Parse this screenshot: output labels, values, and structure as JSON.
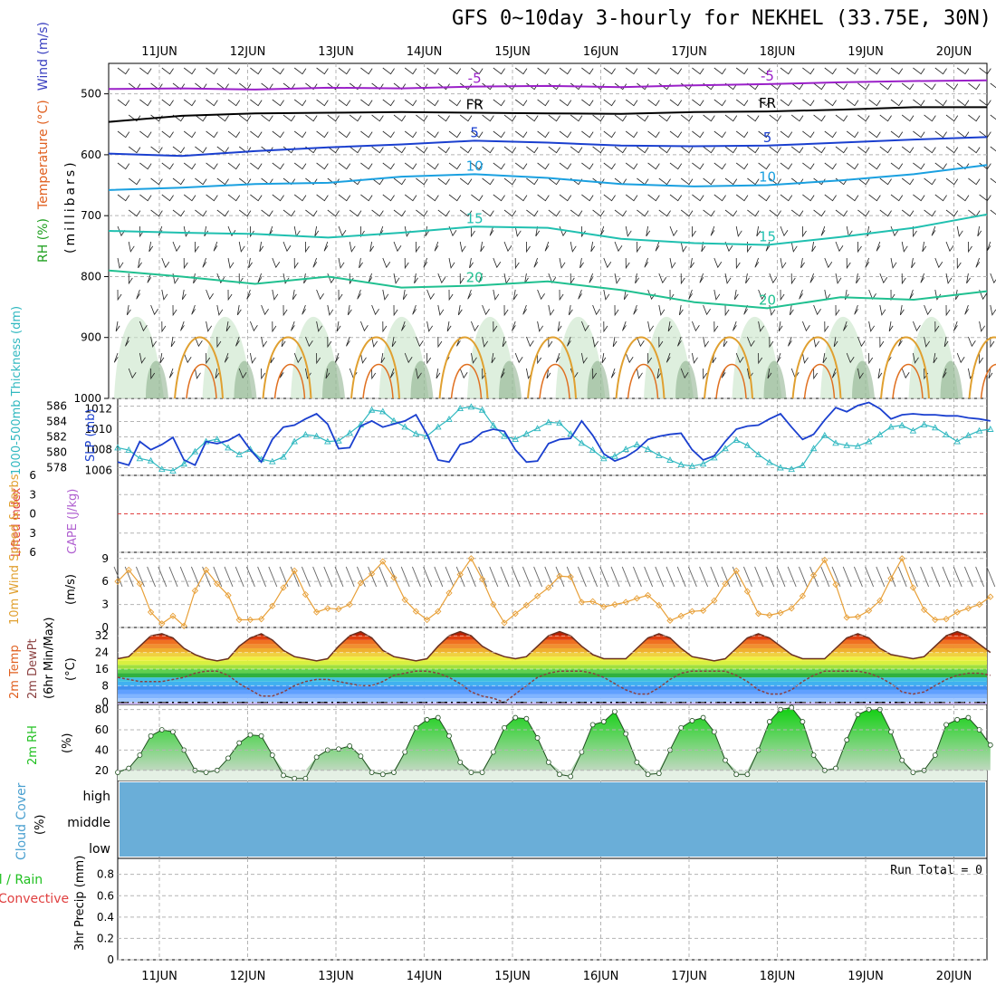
{
  "title": "GFS 0~10day 3-hourly for NEKHEL (33.75E, 30N)",
  "dates": [
    "11JUN",
    "12JUN",
    "13JUN",
    "14JUN",
    "15JUN",
    "16JUN",
    "17JUN",
    "18JUN",
    "19JUN",
    "20JUN"
  ],
  "colors": {
    "grid": "#b4b4b4",
    "slp": "#1a3fcf",
    "thickness": "#30b8c0",
    "wind_speed": "#e8a038",
    "temp_top": "#e03010",
    "rh": "#20c020",
    "cloud": "#6aaed8",
    "lifted_index_zero": "#e04040"
  },
  "chart_data": [
    {
      "type": "contour",
      "panel": "upper-air",
      "ylabel_parts": [
        "Wind (m/s)",
        "Temperature (°C)",
        "RH (%)"
      ],
      "ylabel_units": "(millibars)",
      "y_ticks": [
        500,
        600,
        700,
        800,
        900,
        1000
      ],
      "ylim": [
        1000,
        450
      ],
      "isotherm_labels": [
        "-5",
        "FR",
        "5",
        "10",
        "15",
        "20"
      ],
      "isotherms": [
        {
          "label": "-5",
          "color": "#9a20c8",
          "p": [
            492,
            491,
            493,
            490,
            491,
            488,
            487,
            489,
            486,
            484,
            481,
            479,
            478
          ]
        },
        {
          "label": "FR",
          "color": "#000000",
          "p": [
            546,
            536,
            532,
            531,
            530,
            531,
            532,
            533,
            530,
            529,
            526,
            522,
            522
          ]
        },
        {
          "label": "5",
          "color": "#1a3fcf",
          "p": [
            598,
            602,
            594,
            588,
            583,
            577,
            580,
            585,
            586,
            585,
            580,
            575,
            571
          ]
        },
        {
          "label": "10",
          "color": "#1aa0e0",
          "p": [
            658,
            654,
            648,
            646,
            636,
            632,
            638,
            648,
            652,
            650,
            642,
            632,
            617
          ]
        },
        {
          "label": "15",
          "color": "#20c0b0",
          "p": [
            725,
            728,
            730,
            736,
            728,
            718,
            720,
            738,
            745,
            748,
            735,
            720,
            698
          ]
        },
        {
          "label": "20",
          "color": "#20c090",
          "p": [
            790,
            800,
            812,
            800,
            818,
            815,
            808,
            822,
            842,
            852,
            834,
            838,
            824
          ]
        }
      ]
    },
    {
      "type": "line",
      "panel": "slp-thickness",
      "ylabel": "SLP (mb)",
      "ylabel2": "1000-500mb Thickness (dm)",
      "ylim_left": [
        577,
        587
      ],
      "ylim_right": [
        1005.5,
        1013
      ],
      "y_ticks_left": [
        578,
        580,
        582,
        584,
        586
      ],
      "y_ticks_right": [
        1006,
        1008,
        1010,
        1012
      ],
      "x": [
        0,
        1,
        2,
        3,
        4,
        5,
        6,
        7,
        8,
        9,
        10,
        11,
        12,
        13,
        14,
        15,
        16,
        17,
        18,
        19,
        20,
        21,
        22,
        23,
        24,
        25,
        26,
        27,
        28,
        29,
        30,
        31,
        32,
        33,
        34,
        35,
        36,
        37,
        38,
        39,
        40,
        41,
        42,
        43,
        44,
        45,
        46,
        47,
        48,
        49,
        50,
        51,
        52,
        53,
        54,
        55,
        56,
        57,
        58,
        59,
        60,
        61,
        62,
        63,
        64,
        65,
        66,
        67,
        68,
        69,
        70,
        71,
        72,
        73,
        74,
        75,
        76,
        77,
        78,
        79
      ],
      "series": [
        {
          "name": "SLP (mb)",
          "axis": "right",
          "values": [
            1006.8,
            1006.5,
            1008.8,
            1008.0,
            1008.5,
            1009.2,
            1007.0,
            1006.5,
            1008.8,
            1008.6,
            1008.9,
            1009.5,
            1008.0,
            1006.8,
            1009.0,
            1010.2,
            1010.4,
            1011.0,
            1011.5,
            1010.5,
            1008.1,
            1008.2,
            1010.3,
            1010.8,
            1010.2,
            1010.5,
            1010.8,
            1011.4,
            1009.5,
            1007.0,
            1006.8,
            1008.5,
            1008.8,
            1009.7,
            1010.0,
            1009.8,
            1008.0,
            1006.8,
            1006.9,
            1008.6,
            1009.0,
            1009.1,
            1010.8,
            1009.4,
            1007.6,
            1006.9,
            1007.3,
            1008.0,
            1009.0,
            1009.3,
            1009.5,
            1009.6,
            1008.0,
            1007.0,
            1007.4,
            1008.8,
            1010.0,
            1010.3,
            1010.4,
            1011.0,
            1011.5,
            1010.2,
            1009.0,
            1009.5,
            1010.9,
            1012.1,
            1011.7,
            1012.3,
            1012.6,
            1012.0,
            1011.0,
            1011.4,
            1011.5,
            1011.4,
            1011.4,
            1011.3,
            1011.3,
            1011.1,
            1011.0,
            1010.8
          ]
        },
        {
          "name": "1000-500mb Thickness (dm)",
          "axis": "left",
          "values": [
            580.6,
            580.3,
            579.2,
            578.9,
            577.8,
            577.6,
            578.5,
            580.1,
            581.4,
            581.7,
            580.6,
            579.7,
            580.4,
            579.1,
            578.8,
            579.4,
            581.4,
            582.3,
            582.1,
            581.4,
            581.5,
            582.5,
            583.6,
            585.5,
            585.3,
            584.1,
            583.3,
            582.4,
            582.1,
            583.3,
            584.3,
            585.7,
            585.9,
            585.5,
            583.5,
            582.1,
            581.7,
            582.4,
            583.1,
            583.9,
            583.8,
            582.4,
            581.2,
            580.3,
            579.2,
            579.5,
            580.4,
            581.0,
            580.4,
            579.6,
            579.0,
            578.4,
            578.2,
            578.5,
            579.3,
            580.5,
            581.6,
            580.9,
            579.7,
            578.7,
            578.0,
            577.8,
            578.3,
            580.5,
            582.2,
            581.2,
            580.9,
            580.8,
            581.4,
            582.3,
            583.3,
            583.5,
            582.8,
            583.6,
            583.2,
            582.3,
            581.4,
            582.2,
            582.8,
            583.0
          ]
        }
      ]
    },
    {
      "type": "line",
      "panel": "cape-lifted-index",
      "ylabel": "CAPE (J/kg)",
      "ylabel2": "Lifted Index",
      "y_ticks": [
        -6,
        -3,
        0,
        3,
        6
      ],
      "ylim": [
        -6,
        6
      ],
      "series": [
        {
          "name": "Lifted Index",
          "values": []
        },
        {
          "name": "CAPE (J/kg)",
          "values": []
        }
      ]
    },
    {
      "type": "line",
      "panel": "wind-10m",
      "ylabel": "10m Wind Speed & Barbs",
      "ylabel_units": "(m/s)",
      "y_ticks": [
        0,
        3,
        6,
        9
      ],
      "ylim": [
        0,
        9.8
      ],
      "series": [
        {
          "name": "10m Wind Speed",
          "values": [
            6.0,
            7.5,
            5.7,
            2.0,
            0.5,
            1.5,
            0.2,
            4.8,
            7.5,
            5.7,
            4.2,
            1.0,
            1.0,
            1.1,
            2.8,
            5.2,
            7.4,
            4.3,
            2.0,
            2.5,
            2.4,
            3.0,
            5.8,
            7.0,
            8.6,
            6.5,
            3.6,
            2.1,
            1.0,
            2.1,
            4.5,
            6.9,
            9.0,
            6.3,
            3.0,
            0.6,
            1.8,
            2.9,
            4.1,
            5.2,
            6.7,
            6.6,
            3.3,
            3.4,
            2.7,
            3.0,
            3.3,
            3.8,
            4.2,
            2.9,
            0.9,
            1.5,
            2.1,
            2.2,
            3.5,
            5.7,
            7.4,
            4.7,
            1.8,
            1.6,
            1.9,
            2.5,
            4.1,
            6.8,
            8.8,
            5.6,
            1.3,
            1.4,
            2.2,
            3.5,
            6.4,
            9.0,
            5.2,
            2.3,
            1.0,
            1.1,
            2.0,
            2.5,
            3.0,
            4.0
          ]
        }
      ]
    },
    {
      "type": "area",
      "panel": "temperature",
      "ylabel": "2m Temp",
      "ylabel2": "2m DewPt",
      "ylabel3": "(6hr Min/Max)",
      "ylabel_units": "(°C)",
      "y_ticks": [
        0,
        8,
        16,
        24,
        32
      ],
      "ylim": [
        -1,
        36
      ],
      "series": [
        {
          "name": "2m Temp",
          "values": [
            21,
            22,
            27,
            32,
            33,
            31,
            26,
            23,
            21,
            20,
            21,
            27,
            31,
            33,
            30,
            25,
            22,
            21,
            20,
            21,
            27,
            32,
            34,
            31,
            25,
            22,
            21,
            20,
            21,
            27,
            32,
            34,
            32,
            27,
            24,
            22,
            21,
            22,
            27,
            32,
            34,
            32,
            27,
            23,
            21,
            21,
            21,
            26,
            31,
            33,
            31,
            26,
            22,
            21,
            20,
            21,
            26,
            31,
            33,
            31,
            27,
            23,
            21,
            21,
            21,
            26,
            31,
            33,
            31,
            26,
            23,
            22,
            21,
            22,
            27,
            32,
            34,
            32,
            28,
            24
          ]
        },
        {
          "name": "2m DewPt",
          "values": [
            12,
            11,
            10,
            10,
            10,
            11,
            12,
            14,
            15,
            15,
            13,
            9,
            6,
            3,
            3,
            5,
            8,
            10,
            11,
            11,
            10,
            9,
            8,
            8,
            10,
            13,
            14,
            15,
            15,
            14,
            12,
            9,
            5,
            3,
            2,
            0,
            4,
            8,
            12,
            14,
            15,
            15,
            15,
            14,
            12,
            9,
            6,
            4,
            4,
            7,
            11,
            14,
            15,
            15,
            15,
            15,
            13,
            10,
            6,
            4,
            4,
            6,
            10,
            13,
            15,
            15,
            15,
            15,
            14,
            12,
            9,
            5,
            4,
            5,
            8,
            11,
            13,
            14,
            14,
            13
          ]
        }
      ]
    },
    {
      "type": "area",
      "panel": "relative-humidity",
      "ylabel": "2m RH",
      "ylabel_units": "(%)",
      "y_ticks": [
        20,
        40,
        60,
        80
      ],
      "ylim": [
        10,
        85
      ],
      "series": [
        {
          "name": "2m RH",
          "values": [
            18,
            22,
            35,
            54,
            60,
            58,
            40,
            20,
            18,
            20,
            32,
            47,
            55,
            54,
            35,
            15,
            12,
            12,
            33,
            40,
            41,
            44,
            34,
            18,
            16,
            18,
            38,
            62,
            70,
            72,
            54,
            28,
            18,
            18,
            38,
            62,
            72,
            71,
            52,
            28,
            16,
            14,
            38,
            65,
            68,
            78,
            56,
            28,
            16,
            17,
            40,
            62,
            69,
            72,
            58,
            30,
            16,
            16,
            40,
            68,
            80,
            82,
            68,
            35,
            20,
            22,
            50,
            75,
            80,
            80,
            58,
            30,
            18,
            20,
            35,
            65,
            70,
            72,
            60,
            45
          ]
        }
      ]
    },
    {
      "type": "heatmap",
      "panel": "cloud-cover",
      "ylabel": "Cloud Cover",
      "ylabel_units": "(%)",
      "rows": [
        "high",
        "middle",
        "low"
      ]
    },
    {
      "type": "bar",
      "panel": "precipitation",
      "ylabel": "3hr Precip (mm)",
      "legend_total": "Total",
      "legend_rain": "Rain",
      "legend_convective": "Convective",
      "run_total_label": "Run Total = 0",
      "y_ticks": [
        0,
        0.2,
        0.4,
        0.6,
        0.8
      ],
      "ylim": [
        0,
        0.95
      ],
      "series": [
        {
          "name": "Total",
          "values": []
        },
        {
          "name": "Convective",
          "values": []
        }
      ]
    }
  ]
}
